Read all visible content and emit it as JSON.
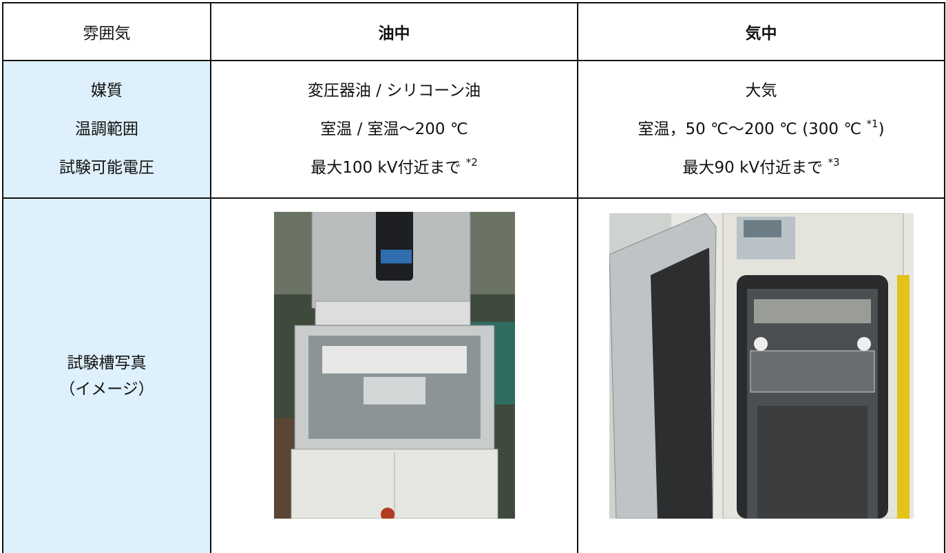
{
  "table": {
    "header": [
      "雰囲気",
      "油中",
      "気中"
    ],
    "rows": [
      {
        "labels": [
          "媒質",
          "温調範囲",
          "試験可能電圧"
        ],
        "oil": [
          {
            "text": "変圧器油 / シリコーン油"
          },
          {
            "text": "室温 / 室温～200 ℃"
          },
          {
            "text": "最大100 kV付近まで",
            "note": "*2"
          }
        ],
        "air": [
          {
            "text": "大気"
          },
          {
            "text": "室温，50 ℃～200 ℃ (300 ℃",
            "note": "*1",
            "after": ")"
          },
          {
            "text": "最大90 kV付近まで",
            "note": "*3"
          }
        ]
      },
      {
        "labels": [
          "試験槽写真",
          "（イメージ）"
        ]
      }
    ]
  }
}
